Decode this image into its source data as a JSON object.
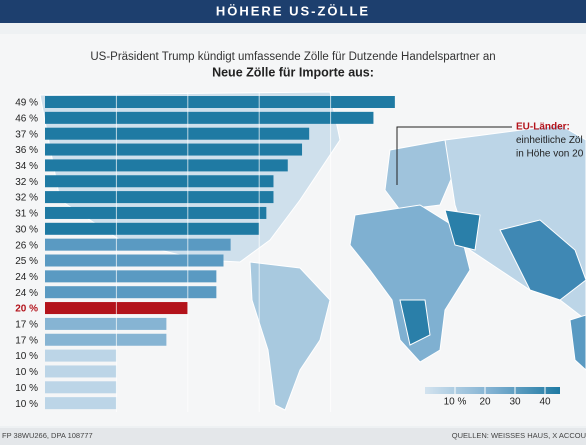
{
  "header": {
    "title": "HÖHERE US-ZÖLLE"
  },
  "chart_data": {
    "type": "bar",
    "orientation": "horizontal",
    "subtitle": "US-Präsident Trump kündigt umfassende Zölle für Dutzende Handelspartner an",
    "title": "Neue Zölle für Importe aus:",
    "values": [
      49,
      46,
      37,
      36,
      34,
      32,
      32,
      31,
      30,
      26,
      25,
      24,
      24,
      20,
      17,
      17,
      10,
      10,
      10,
      10
    ],
    "value_labels": [
      "49 %",
      "46 %",
      "37 %",
      "36 %",
      "34 %",
      "32 %",
      "32 %",
      "31 %",
      "30 %",
      "26 %",
      "25 %",
      "24 %",
      "24 %",
      "20 %",
      "17 %",
      "17 %",
      "10 %",
      "10 %",
      "10 %",
      "10 %"
    ],
    "colors": [
      "#1f7aa3",
      "#1f7aa3",
      "#1f7aa3",
      "#1f7aa3",
      "#1f7aa3",
      "#1f7aa3",
      "#1f7aa3",
      "#1f7aa3",
      "#1f7aa3",
      "#5a9ac2",
      "#5a9ac2",
      "#5a9ac2",
      "#5a9ac2",
      "#b3131b",
      "#86b4d3",
      "#86b4d3",
      "#bcd5e7",
      "#bcd5e7",
      "#bcd5e7",
      "#bcd5e7"
    ],
    "highlight_color": "#b3131b",
    "xlim": [
      0,
      50
    ],
    "xticks": [
      10,
      20,
      30,
      40
    ],
    "grid": true,
    "annotation": {
      "lines": [
        "EU-Länder:",
        "einheitliche Zöl",
        "in Höhe von 20"
      ]
    },
    "legend": {
      "lim": [
        0,
        45
      ],
      "ticks": [
        {
          "value": 10,
          "label": "10 %"
        },
        20,
        30,
        40
      ]
    }
  },
  "footer": {
    "left": "FP 38WU266, DPA 108777",
    "right": "QUELLEN: WEISSES HAUS, X ACCOU"
  }
}
